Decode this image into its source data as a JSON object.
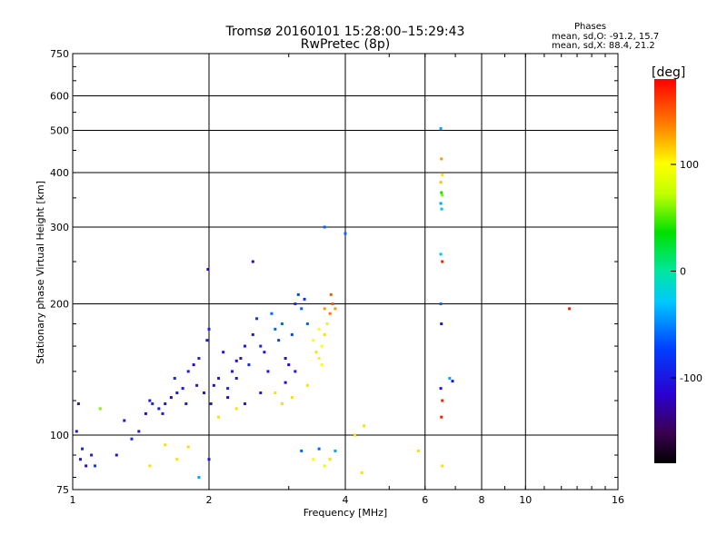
{
  "chart_data": {
    "type": "scatter",
    "title": "Tromsø 20160101 15:28:00–15:29:43",
    "subtitle": "RwPretec (8p)",
    "xlabel": "Frequency [MHz]",
    "ylabel": "Stationary phase Virtual Height [km]",
    "x_scale": "log",
    "y_scale": "log",
    "xlim": [
      1,
      16
    ],
    "ylim": [
      75,
      750
    ],
    "x_ticks": [
      1,
      2,
      4,
      6,
      8,
      10,
      16
    ],
    "y_ticks": [
      75,
      100,
      200,
      300,
      400,
      500,
      600,
      750
    ],
    "grid": true,
    "color_by": "phase",
    "stats": {
      "heading": "Phases",
      "line_o": "mean, sd,O: -91.2, 15.7",
      "line_x": "mean, sd,X: 88.4, 21.2"
    },
    "colorbar": {
      "label": "[deg]",
      "ticks": [
        "100",
        "0",
        "-100"
      ],
      "tick_values": [
        100,
        0,
        -100
      ],
      "range": [
        -180,
        180
      ]
    },
    "series": [
      {
        "points": [
          [
            1.02,
            102,
            -100
          ],
          [
            1.04,
            88,
            -100
          ],
          [
            1.05,
            93,
            -90
          ],
          [
            1.07,
            85,
            -110
          ],
          [
            1.1,
            90,
            -100
          ],
          [
            1.12,
            85,
            -80
          ],
          [
            1.15,
            115,
            60
          ],
          [
            1.03,
            118,
            -100
          ],
          [
            1.25,
            90,
            -100
          ],
          [
            1.3,
            108,
            -100
          ],
          [
            1.35,
            98,
            -90
          ],
          [
            1.4,
            102,
            -100
          ],
          [
            1.45,
            112,
            -110
          ],
          [
            1.48,
            120,
            -100
          ],
          [
            1.5,
            118,
            -90
          ],
          [
            1.55,
            115,
            -100
          ],
          [
            1.6,
            118,
            -100
          ],
          [
            1.58,
            112,
            -100
          ],
          [
            1.65,
            122,
            -110
          ],
          [
            1.7,
            125,
            -100
          ],
          [
            1.68,
            135,
            -90
          ],
          [
            1.75,
            128,
            -100
          ],
          [
            1.8,
            140,
            -100
          ],
          [
            1.85,
            145,
            -110
          ],
          [
            1.78,
            118,
            -100
          ],
          [
            1.88,
            130,
            -100
          ],
          [
            1.9,
            150,
            -90
          ],
          [
            1.95,
            125,
            -100
          ],
          [
            1.98,
            165,
            -100
          ],
          [
            1.99,
            240,
            -120
          ],
          [
            2.0,
            175,
            -90
          ],
          [
            2.02,
            118,
            -100
          ],
          [
            2.05,
            130,
            -110
          ],
          [
            2.1,
            135,
            -100
          ],
          [
            2.15,
            155,
            -100
          ],
          [
            2.2,
            128,
            -90
          ],
          [
            2.25,
            140,
            -100
          ],
          [
            2.3,
            148,
            -110
          ],
          [
            2.35,
            150,
            -100
          ],
          [
            2.4,
            160,
            -100
          ],
          [
            2.45,
            145,
            -90
          ],
          [
            2.5,
            170,
            -100
          ],
          [
            2.55,
            185,
            -80
          ],
          [
            2.6,
            160,
            -90
          ],
          [
            2.65,
            155,
            -100
          ],
          [
            2.7,
            140,
            -100
          ],
          [
            2.75,
            190,
            -60
          ],
          [
            2.8,
            175,
            -60
          ],
          [
            2.85,
            165,
            -70
          ],
          [
            2.9,
            180,
            -60
          ],
          [
            2.95,
            150,
            -100
          ],
          [
            3.0,
            145,
            -110
          ],
          [
            3.05,
            170,
            -70
          ],
          [
            3.1,
            200,
            -80
          ],
          [
            3.15,
            210,
            -70
          ],
          [
            3.2,
            195,
            -60
          ],
          [
            3.25,
            205,
            -80
          ],
          [
            3.3,
            180,
            -60
          ],
          [
            3.1,
            140,
            -100
          ],
          [
            2.95,
            132,
            -110
          ],
          [
            2.6,
            125,
            -100
          ],
          [
            2.4,
            118,
            -100
          ],
          [
            2.2,
            122,
            -110
          ],
          [
            2.3,
            135,
            -100
          ],
          [
            2.5,
            250,
            -110
          ],
          [
            3.4,
            165,
            100
          ],
          [
            3.45,
            155,
            110
          ],
          [
            3.5,
            150,
            90
          ],
          [
            3.55,
            160,
            100
          ],
          [
            3.6,
            170,
            110
          ],
          [
            3.5,
            175,
            100
          ],
          [
            3.55,
            145,
            100
          ],
          [
            3.65,
            180,
            90
          ],
          [
            3.6,
            195,
            130
          ],
          [
            3.7,
            190,
            140
          ],
          [
            3.75,
            200,
            150
          ],
          [
            3.8,
            195,
            130
          ],
          [
            3.72,
            210,
            150
          ],
          [
            3.3,
            130,
            110
          ],
          [
            3.2,
            92,
            -60
          ],
          [
            3.4,
            88,
            100
          ],
          [
            3.5,
            93,
            -60
          ],
          [
            3.6,
            85,
            90
          ],
          [
            3.7,
            88,
            110
          ],
          [
            3.8,
            92,
            -40
          ],
          [
            4.0,
            290,
            -60
          ],
          [
            3.6,
            300,
            -60
          ],
          [
            4.2,
            100,
            110
          ],
          [
            4.35,
            82,
            110
          ],
          [
            4.4,
            105,
            110
          ],
          [
            5.8,
            92,
            110
          ],
          [
            6.5,
            505,
            -40
          ],
          [
            6.52,
            430,
            130
          ],
          [
            6.55,
            395,
            110
          ],
          [
            6.5,
            380,
            120
          ],
          [
            6.52,
            360,
            40
          ],
          [
            6.55,
            355,
            60
          ],
          [
            6.5,
            340,
            -40
          ],
          [
            6.53,
            330,
            -30
          ],
          [
            6.5,
            260,
            -30
          ],
          [
            6.55,
            250,
            170
          ],
          [
            6.5,
            200,
            -60
          ],
          [
            6.52,
            180,
            -100
          ],
          [
            6.5,
            128,
            -100
          ],
          [
            6.55,
            120,
            170
          ],
          [
            6.52,
            110,
            170
          ],
          [
            6.55,
            85,
            110
          ],
          [
            6.8,
            135,
            -40
          ],
          [
            6.9,
            133,
            -100
          ],
          [
            12.5,
            195,
            170
          ],
          [
            1.48,
            85,
            110
          ],
          [
            1.7,
            88,
            110
          ],
          [
            1.9,
            80,
            -40
          ],
          [
            2.0,
            88,
            -100
          ],
          [
            1.6,
            95,
            110
          ],
          [
            1.8,
            94,
            110
          ],
          [
            2.1,
            110,
            110
          ],
          [
            2.3,
            115,
            110
          ],
          [
            2.8,
            125,
            110
          ],
          [
            2.9,
            118,
            110
          ],
          [
            3.05,
            122,
            110
          ]
        ]
      }
    ]
  }
}
